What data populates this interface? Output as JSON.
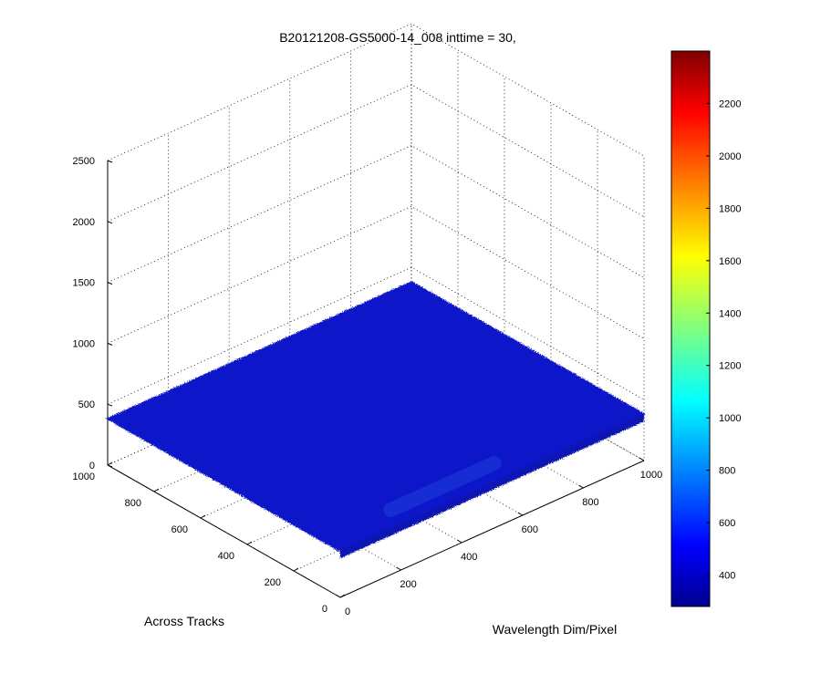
{
  "chart_data": {
    "type": "surface",
    "title": "B20121208-GS5000-14_008 inttime = 30,",
    "xlabel": "Wavelength Dim/Pixel",
    "ylabel": "Across Tracks",
    "zlabel": "",
    "x_ticks": [
      0,
      200,
      400,
      600,
      800,
      1000
    ],
    "y_ticks": [
      0,
      200,
      400,
      600,
      800,
      1000
    ],
    "z_ticks": [
      0,
      500,
      1000,
      1500,
      2000,
      2500
    ],
    "xlim": [
      0,
      1000
    ],
    "ylim": [
      0,
      1000
    ],
    "zlim": [
      0,
      2500
    ],
    "grid": true,
    "surface": {
      "typical_value": 380,
      "value_range": [
        300,
        450
      ],
      "feature": "slightly raised diagonal streak near low y, x 200-500"
    },
    "colormap": "jet",
    "colorbar": {
      "ticks": [
        400,
        600,
        800,
        1000,
        1200,
        1400,
        1600,
        1800,
        2000,
        2200
      ],
      "clim": [
        280,
        2400
      ],
      "colors": [
        "#00008f",
        "#0000ff",
        "#00ffff",
        "#ffff00",
        "#ff0000",
        "#800000"
      ]
    }
  }
}
